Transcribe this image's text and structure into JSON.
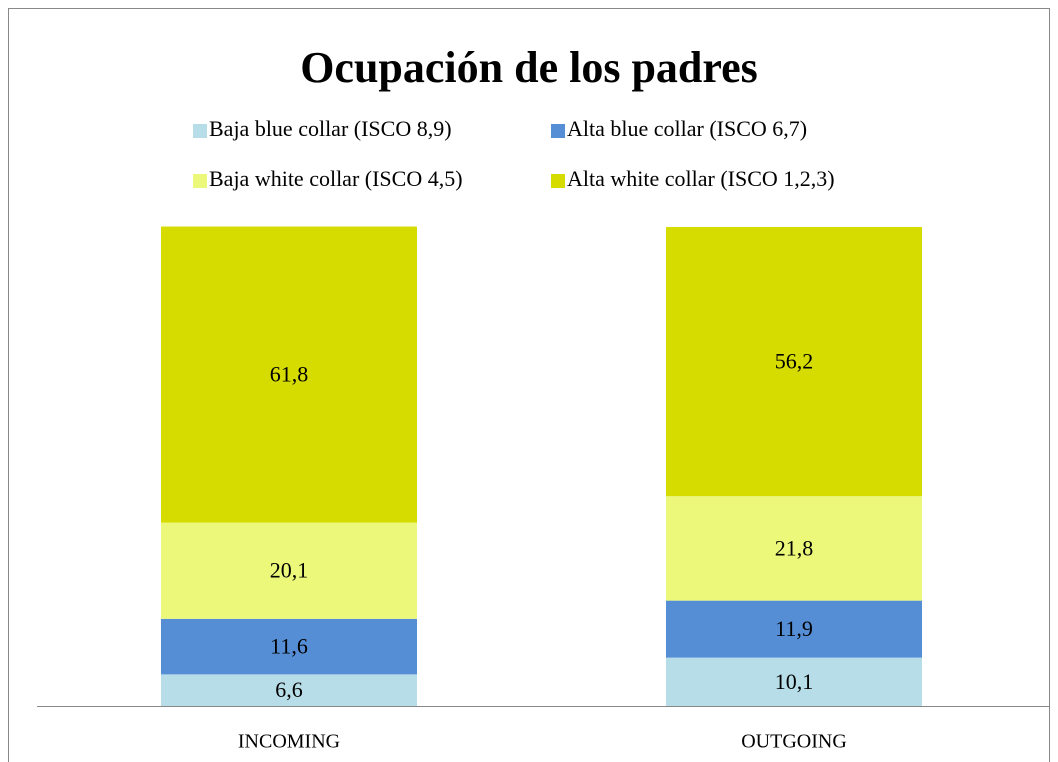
{
  "chart_data": {
    "type": "stacked_bar",
    "title": "Ocupación de los padres",
    "categories": [
      "INCOMING",
      "OUTGOING"
    ],
    "series": [
      {
        "name": "Baja blue collar (ISCO 8,9)",
        "color": "#b7dde8",
        "values": [
          6.6,
          10.1
        ],
        "value_labels": [
          "6,6",
          "10,1"
        ]
      },
      {
        "name": "Alta blue collar (ISCO 6,7)",
        "color": "#558ed5",
        "values": [
          11.6,
          11.9
        ],
        "value_labels": [
          "11,6",
          "11,9"
        ]
      },
      {
        "name": "Baja white collar (ISCO 4,5)",
        "color": "#ebf87a",
        "values": [
          20.1,
          21.8
        ],
        "value_labels": [
          "20,1",
          "21,8"
        ]
      },
      {
        "name": "Alta white collar (ISCO 1,2,3)",
        "color": "#d6dc00",
        "values": [
          61.8,
          56.2
        ],
        "value_labels": [
          "61,8",
          "56,2"
        ]
      }
    ],
    "ylim": [
      0,
      100
    ],
    "legend": "top"
  }
}
